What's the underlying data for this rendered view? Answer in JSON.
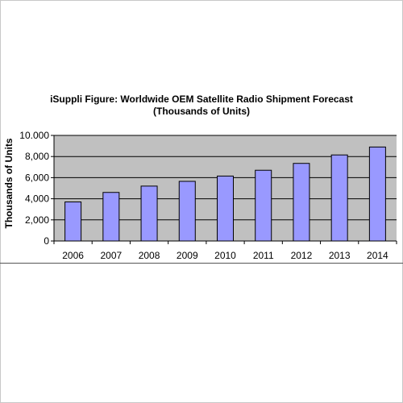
{
  "chart_data": {
    "type": "bar",
    "title_line1": "iSuppli Figure: Worldwide OEM Satellite Radio Shipment Forecast",
    "title_line2": "(Thousands of Units)",
    "ylabel": "Thousands of Units",
    "xlabel": "",
    "categories": [
      "2006",
      "2007",
      "2008",
      "2009",
      "2010",
      "2011",
      "2012",
      "2013",
      "2014"
    ],
    "values": [
      3700,
      4600,
      5200,
      5650,
      6150,
      6700,
      7350,
      8150,
      8900
    ],
    "ylim": [
      0,
      10000
    ],
    "yticks": [
      0,
      2000,
      4000,
      6000,
      8000,
      10000
    ],
    "ytick_labels": [
      "0",
      "2,000",
      "4,000",
      "6,000",
      "8,000",
      "10.000"
    ],
    "grid": true,
    "colors": {
      "bar": "#9999ff",
      "bar_stroke": "#000000",
      "plot_bg": "#c0c0c0",
      "gridline": "#000000"
    }
  }
}
